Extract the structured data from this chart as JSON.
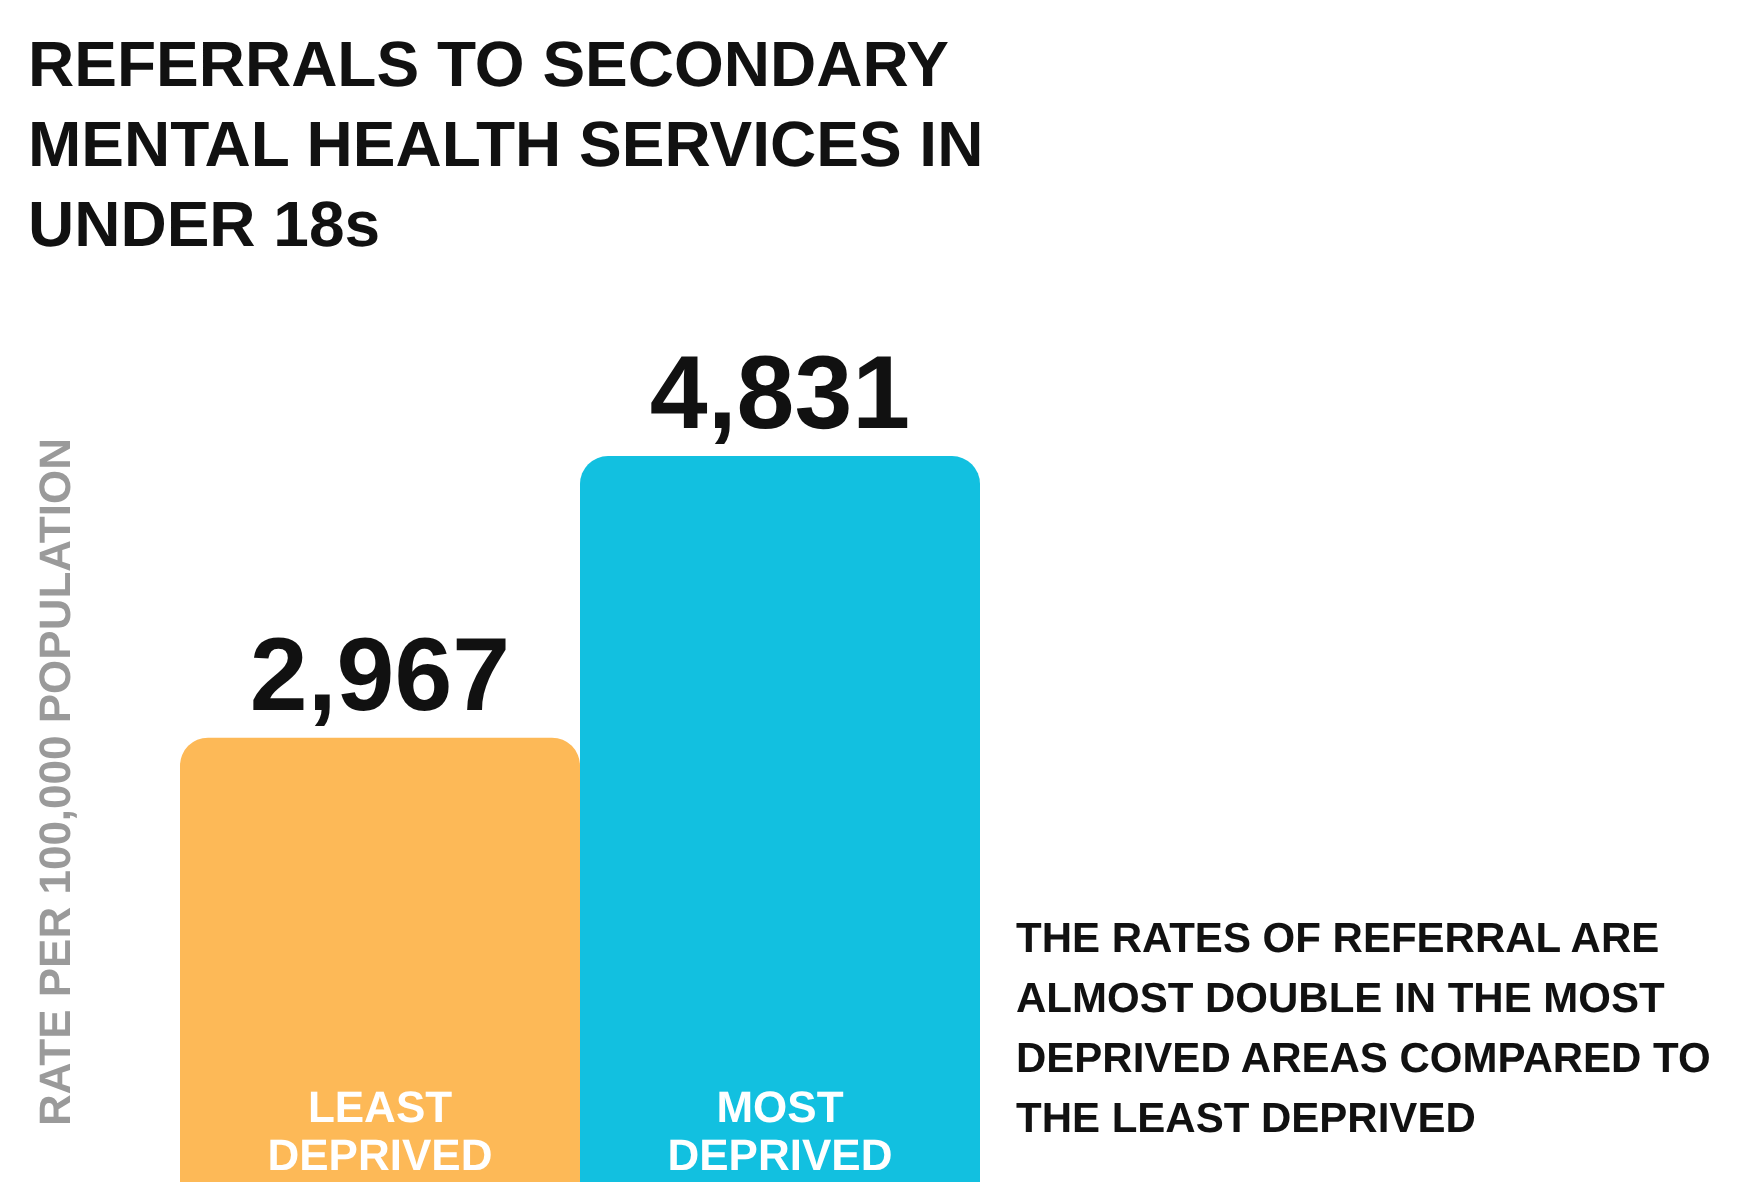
{
  "chart_data": {
    "type": "bar",
    "title": "REFERRALS TO SECONDARY MENTAL HEALTH SERVICES IN UNDER 18s",
    "ylabel": "RATE PER 100,000 POPULATION",
    "categories": [
      "LEAST DEPRIVED",
      "MOST DEPRIVED"
    ],
    "values": [
      2967,
      4831
    ],
    "value_labels": [
      "2,967",
      "4,831"
    ],
    "colors": [
      "#fdb957",
      "#12c0e0"
    ],
    "annotations": [
      "THE RATES OF REFERRAL ARE ALMOST DOUBLE IN THE MOST DEPRIVED AREAS COMPARED TO THE LEAST DEPRIVED"
    ]
  }
}
